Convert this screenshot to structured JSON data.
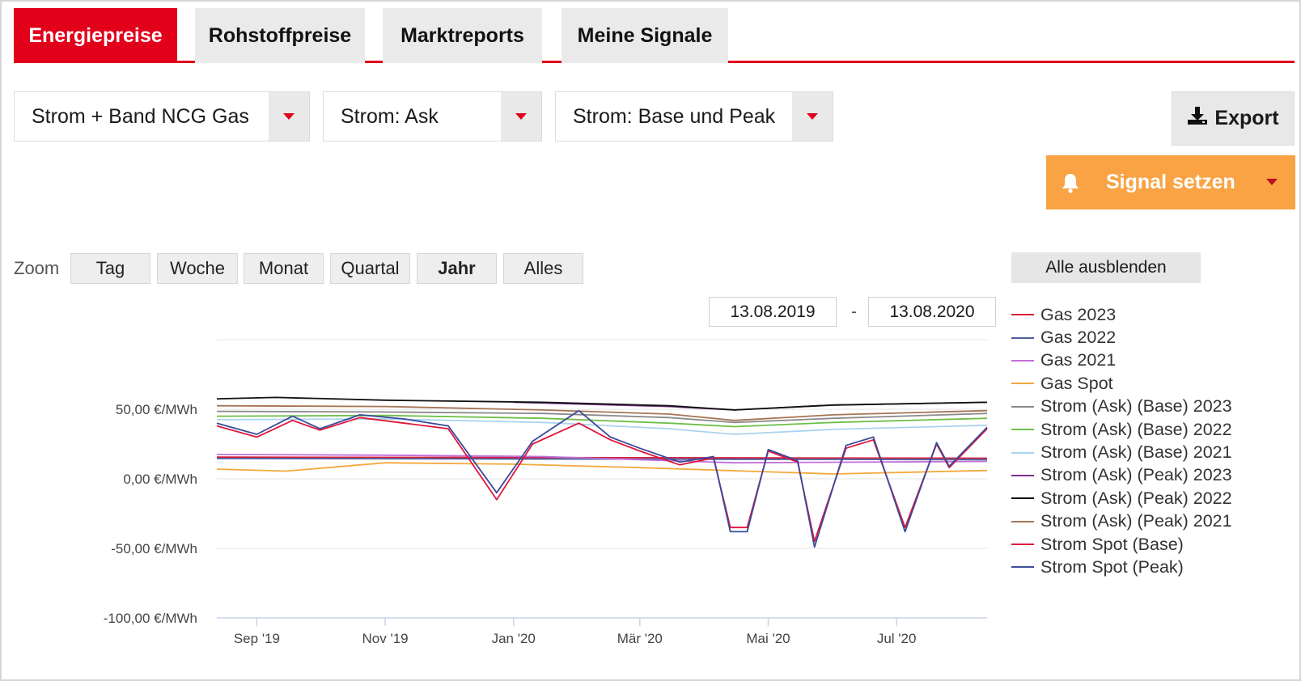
{
  "tabs": [
    {
      "label": "Energiepreise",
      "active": true
    },
    {
      "label": "Rohstoffpreise",
      "active": false
    },
    {
      "label": "Marktreports",
      "active": false
    },
    {
      "label": "Meine Signale",
      "active": false
    }
  ],
  "filters": {
    "product": "Strom + Band NCG Gas",
    "price_type": "Strom: Ask",
    "load_type": "Strom: Base und Peak"
  },
  "actions": {
    "export_label": "Export",
    "signal_label": "Signal setzen"
  },
  "zoom": {
    "label": "Zoom",
    "options": [
      "Tag",
      "Woche",
      "Monat",
      "Quartal",
      "Jahr",
      "Alles"
    ],
    "active": "Jahr"
  },
  "date_range": {
    "from": "13.08.2019",
    "separator": "-",
    "to": "13.08.2020"
  },
  "legend_toggle": "Alle ausblenden",
  "colors": {
    "brand_red": "#e2001a",
    "signal_orange": "#f9a345",
    "gas_2023": "#d81e3a",
    "gas_2022": "#4a5fa0",
    "gas_2021": "#c070d8",
    "gas_spot": "#f4a93c",
    "strom_base_2023": "#8a8a8a",
    "strom_base_2022": "#6cbf47",
    "strom_base_2021": "#a9d4ef",
    "strom_peak_2023": "#7f2f8f",
    "strom_peak_2022": "#111111",
    "strom_peak_2021": "#a57454",
    "strom_spot_base": "#e0163a",
    "strom_spot_peak": "#3a4a9a"
  },
  "chart_data": {
    "type": "line",
    "x_start": "2019-08-13",
    "x_end": "2020-08-13",
    "x_ticks": [
      "Sep '19",
      "Nov '19",
      "Jan '20",
      "Mär '20",
      "Mai '20",
      "Jul '20"
    ],
    "y_ticks": [
      "50,00 €/MWh",
      "0,00 €/MWh",
      "-50,00 €/MWh",
      "-100,00 €/MWh"
    ],
    "y_tick_values": [
      50,
      0,
      -50,
      -100
    ],
    "ylim": [
      -105,
      100
    ],
    "grid": true,
    "legend_position": "right",
    "series": [
      {
        "name": "Gas 2023",
        "color": "#d81e3a",
        "x": [
          "2019-08-13",
          "2020-08-13"
        ],
        "values": [
          15.6,
          14.8
        ]
      },
      {
        "name": "Gas 2022",
        "color": "#4a5fa0",
        "x": [
          "2019-08-13",
          "2020-08-13"
        ],
        "values": [
          14.6,
          13.8
        ]
      },
      {
        "name": "Gas 2021",
        "color": "#c070d8",
        "x": [
          "2019-08-13",
          "2019-11-01",
          "2020-01-15",
          "2020-04-15",
          "2020-08-13"
        ],
        "values": [
          17.5,
          17.0,
          16.0,
          11.5,
          12.5
        ]
      },
      {
        "name": "Gas Spot",
        "color": "#f4a93c",
        "x": [
          "2019-08-13",
          "2019-09-15",
          "2019-11-01",
          "2020-01-01",
          "2020-03-01",
          "2020-05-01",
          "2020-06-01",
          "2020-08-13"
        ],
        "values": [
          7.0,
          5.5,
          11.5,
          10.5,
          8.0,
          5.0,
          3.5,
          6.0
        ]
      },
      {
        "name": "Strom (Ask) (Base) 2023",
        "color": "#8a8a8a",
        "x": [
          "2019-08-13",
          "2019-11-01",
          "2020-01-15",
          "2020-03-15",
          "2020-04-15",
          "2020-06-01",
          "2020-08-13"
        ],
        "values": [
          48.5,
          48.0,
          47.0,
          44.0,
          40.5,
          43.5,
          47.0
        ]
      },
      {
        "name": "Strom (Ask) (Base) 2022",
        "color": "#6cbf47",
        "x": [
          "2019-08-13",
          "2019-11-01",
          "2020-01-15",
          "2020-03-15",
          "2020-04-15",
          "2020-06-01",
          "2020-08-13"
        ],
        "values": [
          45.0,
          45.5,
          43.5,
          40.0,
          37.5,
          40.5,
          43.5
        ]
      },
      {
        "name": "Strom (Ask) (Base) 2021",
        "color": "#a9d4ef",
        "x": [
          "2019-08-13",
          "2019-11-01",
          "2020-01-15",
          "2020-03-15",
          "2020-04-15",
          "2020-06-01",
          "2020-08-13"
        ],
        "values": [
          42.5,
          43.0,
          40.5,
          36.0,
          32.0,
          35.5,
          38.5
        ]
      },
      {
        "name": "Strom (Ask) (Peak) 2023",
        "color": "#7f2f8f",
        "x": [
          "2020-01-01",
          "2020-03-15",
          "2020-04-15",
          "2020-06-01",
          "2020-08-13"
        ],
        "values": [
          55.0,
          52.0,
          49.5,
          53.0,
          55.0
        ]
      },
      {
        "name": "Strom (Ask) (Peak) 2022",
        "color": "#111111",
        "x": [
          "2019-08-13",
          "2019-09-10",
          "2019-11-01",
          "2020-01-15",
          "2020-03-15",
          "2020-04-15",
          "2020-06-01",
          "2020-08-13"
        ],
        "values": [
          57.5,
          58.5,
          56.5,
          55.0,
          52.5,
          49.5,
          53.0,
          55.0
        ]
      },
      {
        "name": "Strom (Ask) (Peak) 2021",
        "color": "#a57454",
        "x": [
          "2019-08-13",
          "2019-11-01",
          "2020-01-15",
          "2020-03-15",
          "2020-04-15",
          "2020-06-01",
          "2020-08-13"
        ],
        "values": [
          52.5,
          52.0,
          49.5,
          46.5,
          42.0,
          46.0,
          49.0
        ]
      },
      {
        "name": "Strom Spot (Base)",
        "color": "#e0163a",
        "x": [
          "2019-08-13",
          "2019-09-01",
          "2019-09-18",
          "2019-10-01",
          "2019-10-20",
          "2019-11-10",
          "2019-12-01",
          "2019-12-24",
          "2020-01-10",
          "2020-02-01",
          "2020-02-16",
          "2020-03-01",
          "2020-03-20",
          "2020-04-05",
          "2020-04-13",
          "2020-04-21",
          "2020-05-01",
          "2020-05-15",
          "2020-05-23",
          "2020-06-07",
          "2020-06-20",
          "2020-07-05",
          "2020-07-20",
          "2020-07-26",
          "2020-08-13"
        ],
        "values": [
          38,
          30,
          42,
          35,
          44,
          40,
          36,
          -15,
          25,
          40,
          28,
          20,
          10,
          15,
          -35,
          -35,
          20,
          12,
          -45,
          22,
          28,
          -35,
          25,
          8,
          36
        ]
      },
      {
        "name": "Strom Spot (Peak)",
        "color": "#3a4a9a",
        "x": [
          "2019-08-13",
          "2019-09-01",
          "2019-09-18",
          "2019-10-01",
          "2019-10-20",
          "2019-11-10",
          "2019-12-01",
          "2019-12-24",
          "2020-01-10",
          "2020-02-01",
          "2020-02-16",
          "2020-03-01",
          "2020-03-20",
          "2020-04-05",
          "2020-04-13",
          "2020-04-21",
          "2020-05-01",
          "2020-05-15",
          "2020-05-23",
          "2020-06-07",
          "2020-06-20",
          "2020-07-05",
          "2020-07-20",
          "2020-07-26",
          "2020-08-13"
        ],
        "values": [
          40,
          32,
          45,
          36,
          46,
          43,
          38,
          -10,
          27,
          49,
          30,
          22,
          12,
          16,
          -38,
          -38,
          21,
          13,
          -49,
          24,
          30,
          -38,
          26,
          9,
          37
        ]
      }
    ]
  }
}
